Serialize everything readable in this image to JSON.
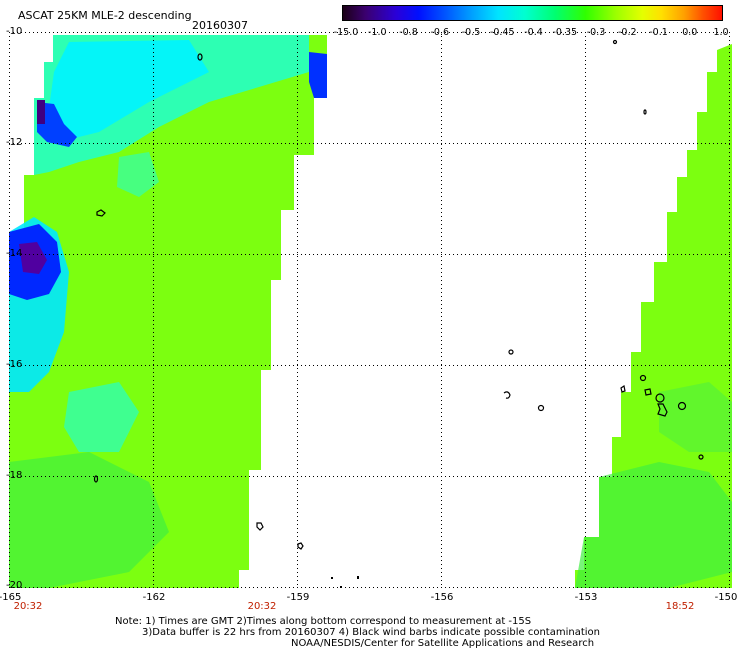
{
  "title": "ASCAT 25KM MLE-2 descending",
  "date": "20160307",
  "colorbar": {
    "labels": [
      "-15.0",
      "-1.0",
      "-0.8",
      "-0.6",
      "-0.5",
      "-0.45",
      "-0.4",
      "-0.35",
      "-0.3",
      "-0.2",
      "-0.1",
      "0.0",
      "1.0"
    ]
  },
  "latitude_labels": [
    "-10",
    "-12",
    "-14",
    "-16",
    "-18",
    "-20"
  ],
  "longitude_labels": [
    "-165",
    "-162",
    "-159",
    "-156",
    "-153",
    "-150"
  ],
  "time_labels": [
    "20:32",
    "20:32",
    "18:52"
  ],
  "notes": {
    "line1": "Note: 1) Times are GMT 2)Times along bottom correspond to measurement at -15S",
    "line2": "3)Data buffer is 22 hrs from 20160307 4) Black wind barbs indicate possible contamination",
    "line3": "NOAA/NESDIS/Center for Satellite Applications and Research"
  },
  "colors": {
    "swath_green": "#7cff10",
    "swath_cyan": "#00ffe0",
    "swath_blue": "#0030ff",
    "swath_purple": "#400080",
    "grid": "#000000",
    "time_label": "#c02000"
  },
  "map": {
    "lat_range": [
      -20,
      -10
    ],
    "lon_range": [
      -165,
      -150
    ],
    "grid": "dotted"
  }
}
